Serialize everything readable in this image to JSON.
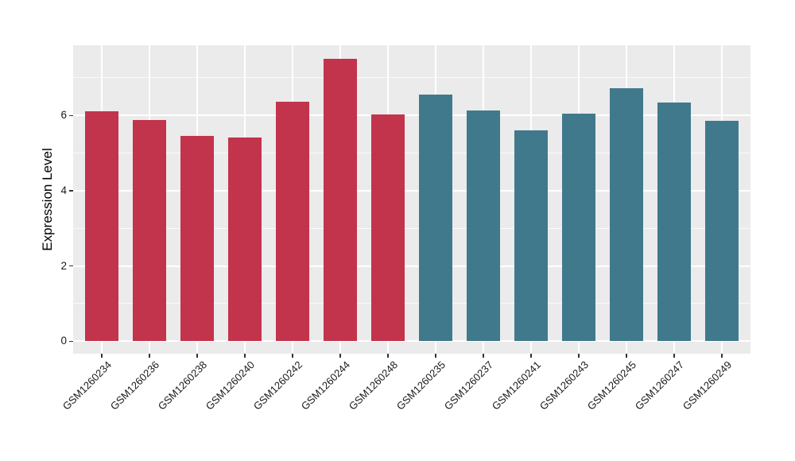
{
  "chart_data": {
    "type": "bar",
    "title": "",
    "xlabel": "",
    "ylabel": "Expression Level",
    "categories": [
      "GSM1260234",
      "GSM1260236",
      "GSM1260238",
      "GSM1260240",
      "GSM1260242",
      "GSM1260244",
      "GSM1260248",
      "GSM1260235",
      "GSM1260237",
      "GSM1260241",
      "GSM1260243",
      "GSM1260245",
      "GSM1260247",
      "GSM1260249"
    ],
    "values": [
      6.11,
      5.88,
      5.46,
      5.42,
      6.37,
      7.5,
      6.03,
      6.55,
      6.13,
      5.6,
      6.05,
      6.72,
      6.34,
      5.86
    ],
    "groups": [
      "group1",
      "group1",
      "group1",
      "group1",
      "group1",
      "group1",
      "group1",
      "group2",
      "group2",
      "group2",
      "group2",
      "group2",
      "group2",
      "group2"
    ],
    "group_colors": {
      "group1": "#C2334C",
      "group2": "#41798C"
    },
    "ylim": [
      0,
      7.86
    ],
    "yticks": [
      0,
      2,
      4,
      6
    ],
    "yminor": [
      1,
      3,
      5,
      7
    ],
    "grid": "on",
    "legend": "none",
    "panel_bg": "#EBEBEB",
    "grid_color": "#FFFFFF",
    "bar_width_fraction": 0.69
  }
}
